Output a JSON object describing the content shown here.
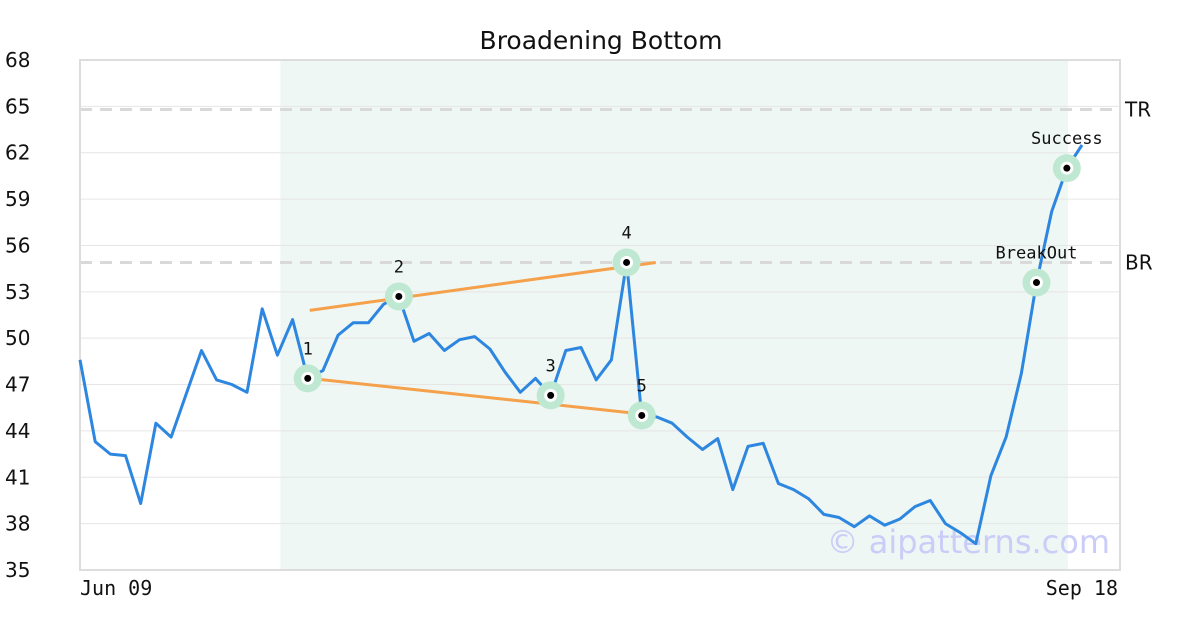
{
  "chart_data": {
    "type": "line",
    "title": "Broadening Bottom",
    "xlabel": "",
    "ylabel": "",
    "ylim": [
      35,
      68
    ],
    "yticks": [
      35,
      38,
      41,
      44,
      47,
      50,
      53,
      56,
      59,
      62,
      65,
      68
    ],
    "x_tick_labels": [
      "Jun 09",
      "Sep 18"
    ],
    "grid": true,
    "colors": {
      "price": "#2d86e0",
      "trendline": "#f5a04a",
      "shaded": "#eef7f3",
      "marker_ring": "#bfe8d2",
      "level_line": "#d9d9d9"
    },
    "shaded_range": [
      13,
      65
    ],
    "levels": [
      {
        "label": "TR",
        "value": 64.8
      },
      {
        "label": "BR",
        "value": 54.9
      }
    ],
    "series": [
      {
        "values": [
          48.6,
          43.3,
          42.5,
          42.4,
          39.3,
          44.5,
          43.6,
          46.4,
          49.2,
          47.3,
          47.0,
          46.5,
          51.9,
          48.9,
          51.2,
          47.4,
          47.9,
          50.2,
          51.0,
          51.0,
          52.2,
          52.7,
          49.8,
          50.3,
          49.2,
          49.9,
          50.1,
          49.3,
          47.8,
          46.5,
          47.4,
          46.3,
          49.2,
          49.4,
          47.3,
          48.6,
          54.9,
          45.0,
          44.9,
          44.5,
          43.6,
          42.8,
          43.5,
          40.2,
          43.0,
          43.2,
          40.6,
          40.2,
          39.6,
          38.6,
          38.4,
          37.8,
          38.5,
          37.9,
          38.3,
          39.1,
          39.5,
          38.0,
          37.4,
          36.7,
          41.1,
          43.6,
          47.7,
          53.6,
          58.2,
          61.0,
          62.5
        ]
      }
    ],
    "trendlines": [
      {
        "from": [
          15,
          51.8
        ],
        "to": [
          37,
          54.9
        ]
      },
      {
        "from": [
          15,
          47.4
        ],
        "to": [
          37,
          45.0
        ]
      }
    ],
    "annotations": [
      {
        "label": "1",
        "x": 15,
        "y": 47.4,
        "pos": "above"
      },
      {
        "label": "2",
        "x": 21,
        "y": 52.7,
        "pos": "above"
      },
      {
        "label": "3",
        "x": 31,
        "y": 46.3,
        "pos": "above"
      },
      {
        "label": "4",
        "x": 36,
        "y": 54.9,
        "pos": "above"
      },
      {
        "label": "5",
        "x": 37,
        "y": 45.0,
        "pos": "above"
      },
      {
        "label": "BreakOut",
        "x": 63,
        "y": 53.6,
        "pos": "above"
      },
      {
        "label": "Success",
        "x": 65,
        "y": 61.0,
        "pos": "above"
      }
    ],
    "watermark": "© aipatterns.com"
  }
}
